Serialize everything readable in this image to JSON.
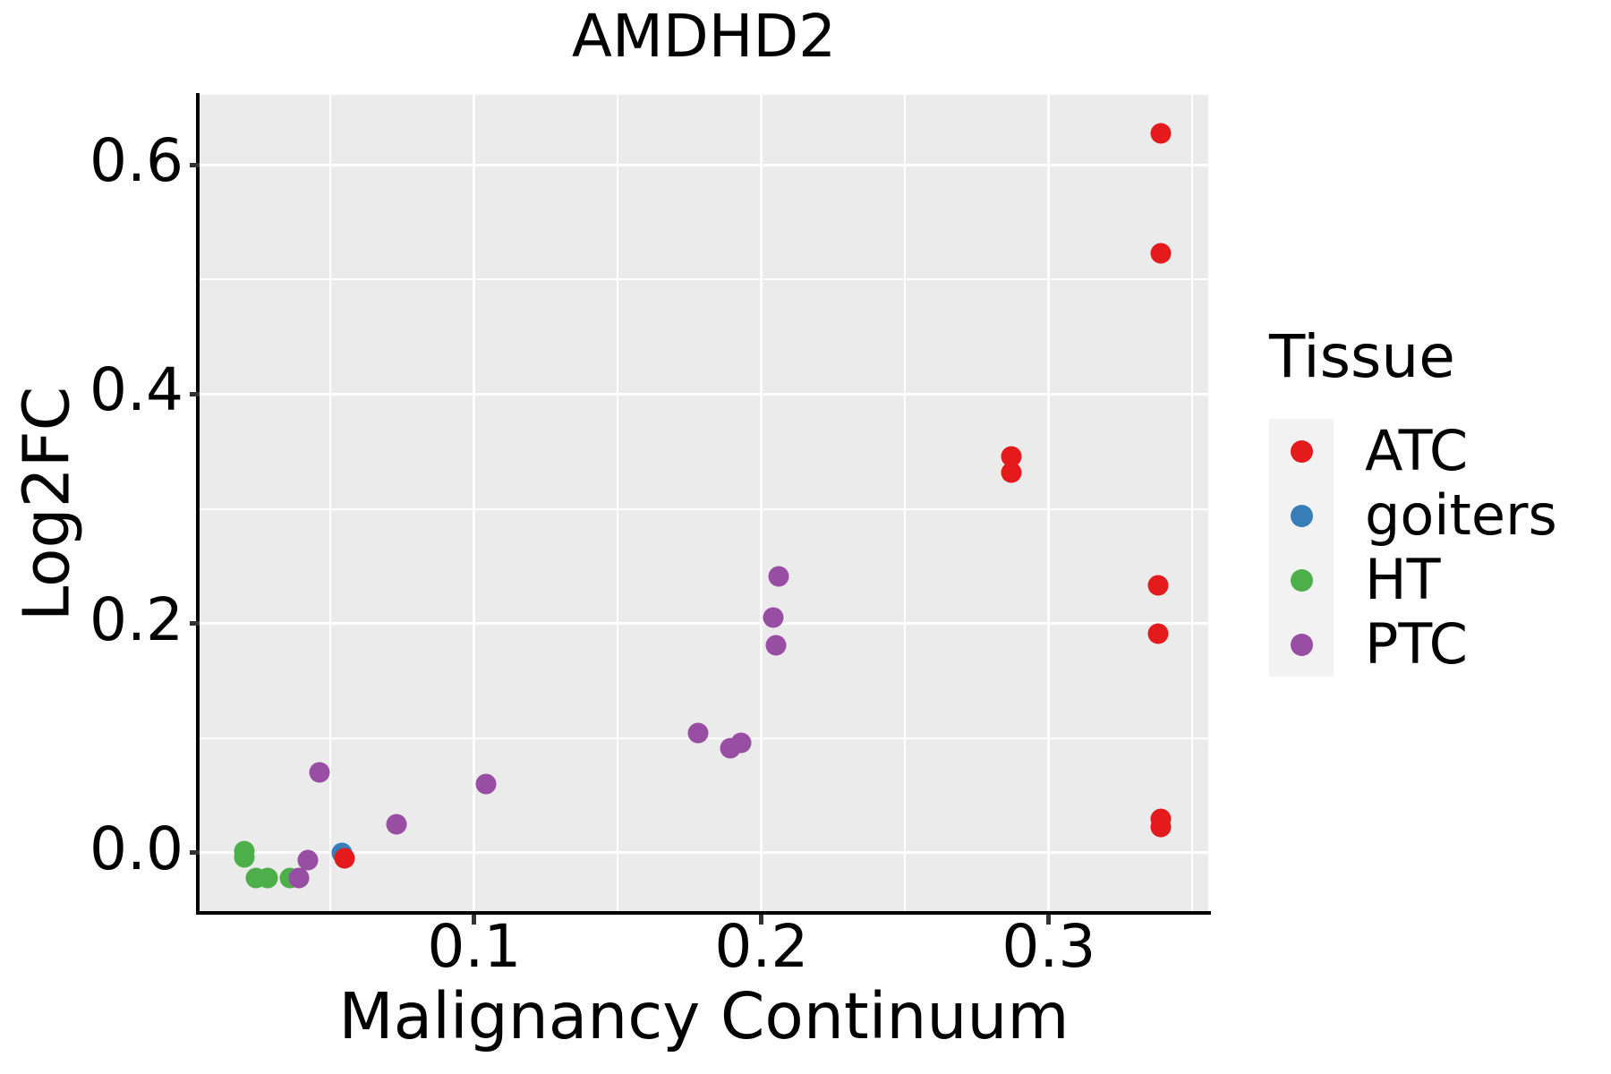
{
  "chart_data": {
    "type": "scatter",
    "title": "AMDHD2",
    "xlabel": "Malignancy Continuum",
    "ylabel": "Log2FC",
    "x_axis": {
      "ticks": [
        0.1,
        0.2,
        0.3
      ],
      "tick_labels": [
        "0.1",
        "0.2",
        "0.3"
      ],
      "minor_ticks": [
        0.05,
        0.15,
        0.25,
        0.35
      ],
      "range": [
        0.0044,
        0.3555
      ],
      "grid": true
    },
    "y_axis": {
      "ticks": [
        0.0,
        0.2,
        0.4,
        0.6
      ],
      "tick_labels": [
        "0.0",
        "0.2",
        "0.4",
        "0.6"
      ],
      "minor_ticks": [
        0.1,
        0.3,
        0.5
      ],
      "range": [
        -0.0527,
        0.6613
      ],
      "grid": true
    },
    "legend": {
      "title": "Tissue",
      "position": "right",
      "entries": [
        {
          "label": "ATC",
          "color": "#E41A1C"
        },
        {
          "label": "goiters",
          "color": "#377EB8"
        },
        {
          "label": "HT",
          "color": "#4DAF4A"
        },
        {
          "label": "PTC",
          "color": "#984EA3"
        }
      ]
    },
    "series": [
      {
        "name": "HT",
        "color": "#4DAF4A",
        "points": [
          [
            0.02,
            0.001
          ],
          [
            0.02,
            -0.004
          ],
          [
            0.024,
            -0.022
          ],
          [
            0.028,
            -0.022
          ],
          [
            0.036,
            -0.022
          ]
        ]
      },
      {
        "name": "goiters",
        "color": "#377EB8",
        "points": [
          [
            0.054,
            0.0
          ]
        ]
      },
      {
        "name": "PTC",
        "color": "#984EA3",
        "points": [
          [
            0.039,
            -0.022
          ],
          [
            0.042,
            -0.007
          ],
          [
            0.046,
            0.07
          ],
          [
            0.073,
            0.025
          ],
          [
            0.104,
            0.06
          ],
          [
            0.178,
            0.104
          ],
          [
            0.189,
            0.091
          ],
          [
            0.193,
            0.096
          ],
          [
            0.204,
            0.205
          ],
          [
            0.205,
            0.181
          ],
          [
            0.206,
            0.241
          ]
        ]
      },
      {
        "name": "ATC",
        "color": "#E41A1C",
        "points": [
          [
            0.055,
            -0.005
          ],
          [
            0.287,
            0.346
          ],
          [
            0.287,
            0.332
          ],
          [
            0.338,
            0.233
          ],
          [
            0.338,
            0.191
          ],
          [
            0.339,
            0.628
          ],
          [
            0.339,
            0.523
          ],
          [
            0.339,
            0.029
          ],
          [
            0.339,
            0.022
          ]
        ]
      }
    ],
    "styles": {
      "panel_bg": "#EBEBEB",
      "grid_color": "#FFFFFF",
      "legend_key_bg": "#F2F2F2",
      "axis_color": "#000000",
      "tick_color": "#333333"
    }
  }
}
